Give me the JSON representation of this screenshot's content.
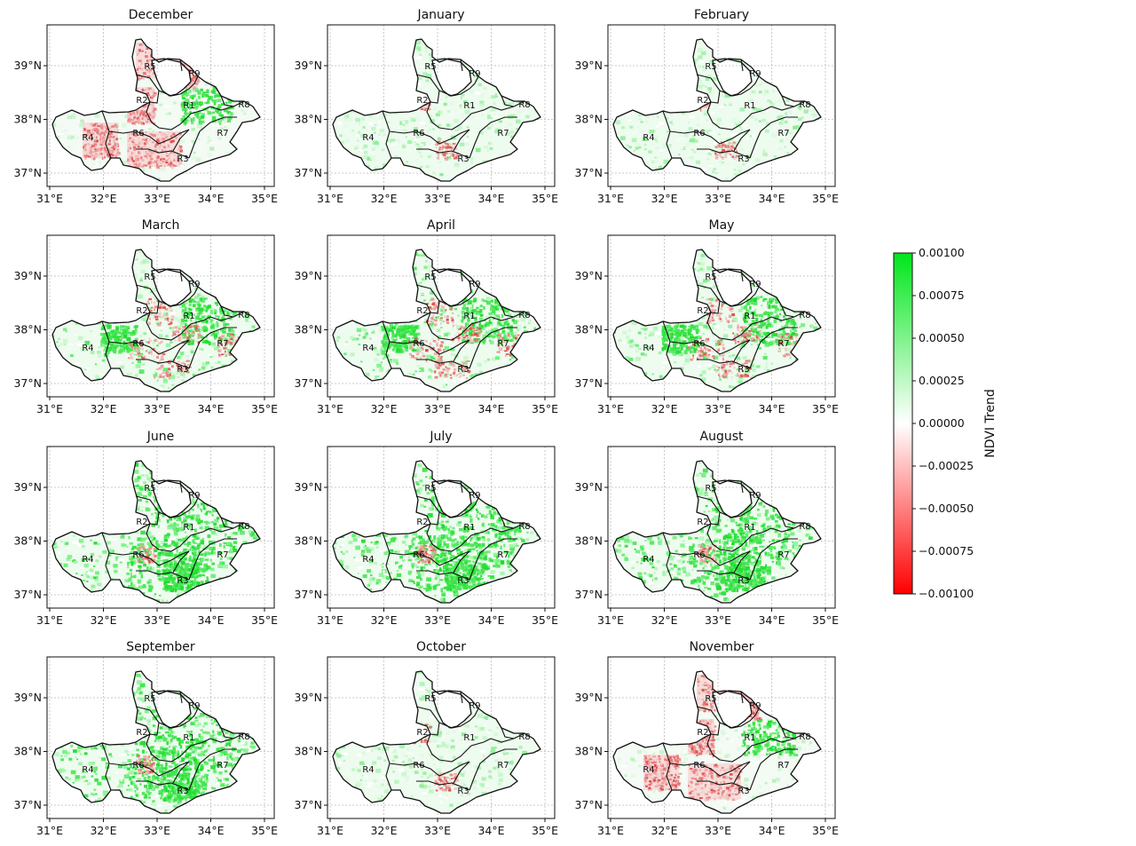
{
  "panels": [
    {
      "title": "December",
      "pattern": "red"
    },
    {
      "title": "January",
      "pattern": "light"
    },
    {
      "title": "February",
      "pattern": "light"
    },
    {
      "title": "March",
      "pattern": "mixed"
    },
    {
      "title": "April",
      "pattern": "mixed"
    },
    {
      "title": "May",
      "pattern": "mixed"
    },
    {
      "title": "June",
      "pattern": "strong"
    },
    {
      "title": "July",
      "pattern": "strong"
    },
    {
      "title": "August",
      "pattern": "strong"
    },
    {
      "title": "September",
      "pattern": "strong"
    },
    {
      "title": "October",
      "pattern": "light"
    },
    {
      "title": "November",
      "pattern": "red"
    }
  ],
  "x_ticks": [
    "31°E",
    "32°E",
    "33°E",
    "34°E",
    "35°E"
  ],
  "y_ticks": [
    "39°N",
    "38°N",
    "37°N"
  ],
  "regions": [
    "R1",
    "R2",
    "R3",
    "R4",
    "R5",
    "R6",
    "R7",
    "R8",
    "R9"
  ],
  "colorbar": {
    "label": "NDVI Trend",
    "ticks": [
      "0.00100",
      "0.00075",
      "0.00050",
      "0.00025",
      "0.00000",
      "−0.00025",
      "−0.00050",
      "−0.00075",
      "−0.00100"
    ],
    "max_color": "#00e61a",
    "mid_color": "#ffffff",
    "min_color": "#ff0000"
  }
}
